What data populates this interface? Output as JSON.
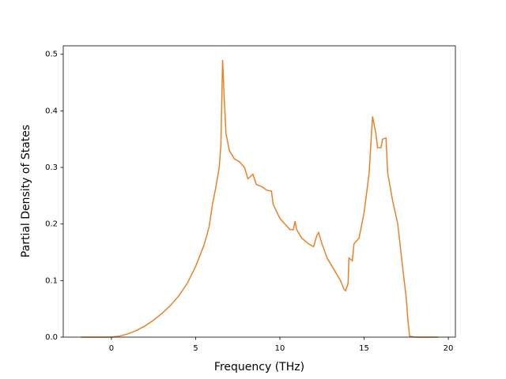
{
  "chart_data": {
    "type": "line",
    "x_label": "Frequency (THz)",
    "y_label": "Partial Density of States",
    "x": [
      -1.8,
      -1,
      0,
      0.5,
      1,
      1.5,
      2,
      2.5,
      3,
      3.5,
      4,
      4.5,
      5,
      5.5,
      5.8,
      6,
      6.2,
      6.4,
      6.5,
      6.6,
      6.7,
      6.8,
      7,
      7.3,
      7.6,
      7.9,
      8.1,
      8.4,
      8.6,
      9,
      9.2,
      9.5,
      9.6,
      10,
      10.3,
      10.6,
      10.8,
      10.9,
      11,
      11.3,
      11.7,
      12,
      12.2,
      12.3,
      12.5,
      12.8,
      13.2,
      13.6,
      13.8,
      13.9,
      14.05,
      14.1,
      14.3,
      14.4,
      14.7,
      15,
      15.3,
      15.5,
      15.7,
      15.8,
      16,
      16.1,
      16.3,
      16.4,
      16.7,
      17,
      17.3,
      17.5,
      17.6,
      17.7,
      18,
      19.4
    ],
    "series": [
      {
        "color": "#e8822a",
        "values": [
          0,
          0,
          0,
          0.002,
          0.006,
          0.012,
          0.02,
          0.03,
          0.042,
          0.056,
          0.073,
          0.095,
          0.125,
          0.163,
          0.195,
          0.235,
          0.265,
          0.3,
          0.34,
          0.49,
          0.42,
          0.36,
          0.33,
          0.315,
          0.31,
          0.3,
          0.28,
          0.288,
          0.27,
          0.265,
          0.26,
          0.258,
          0.235,
          0.21,
          0.2,
          0.19,
          0.19,
          0.205,
          0.19,
          0.175,
          0.165,
          0.16,
          0.18,
          0.185,
          0.165,
          0.14,
          0.12,
          0.1,
          0.085,
          0.082,
          0.095,
          0.14,
          0.135,
          0.165,
          0.175,
          0.22,
          0.29,
          0.39,
          0.36,
          0.335,
          0.335,
          0.35,
          0.352,
          0.29,
          0.24,
          0.2,
          0.12,
          0.07,
          0.03,
          0.002,
          0,
          0
        ]
      }
    ],
    "xlim": [
      -2.86,
      20.42
    ],
    "ylim": [
      0,
      0.515
    ],
    "xticks": [
      0,
      5,
      10,
      15,
      20
    ],
    "yticks": [
      {
        "value": 0,
        "label": "0.0"
      },
      0.1,
      0.2,
      0.3,
      0.4,
      0.5
    ]
  }
}
